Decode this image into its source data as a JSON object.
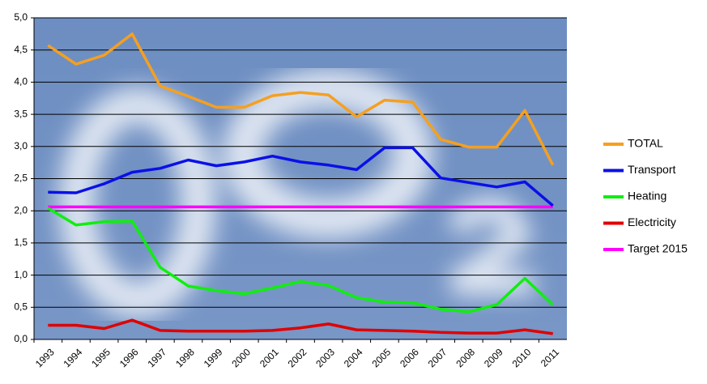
{
  "chart_data": {
    "type": "line",
    "categories": [
      "1993",
      "1994",
      "1995",
      "1996",
      "1997",
      "1998",
      "1999",
      "2000",
      "2001",
      "2002",
      "2003",
      "2004",
      "2005",
      "2006",
      "2007",
      "2008",
      "2009",
      "2010",
      "2011"
    ],
    "series": [
      {
        "name": "TOTAL",
        "color": "#f5a020",
        "values": [
          4.57,
          4.28,
          4.42,
          4.75,
          3.94,
          3.78,
          3.61,
          3.61,
          3.79,
          3.84,
          3.8,
          3.46,
          3.72,
          3.69,
          3.11,
          2.99,
          2.99,
          3.56,
          2.71
        ]
      },
      {
        "name": "Transport",
        "color": "#0a10e6",
        "values": [
          2.29,
          2.28,
          2.42,
          2.6,
          2.66,
          2.79,
          2.7,
          2.76,
          2.85,
          2.76,
          2.71,
          2.64,
          2.98,
          2.98,
          2.51,
          2.44,
          2.37,
          2.45,
          2.08
        ]
      },
      {
        "name": "Heating",
        "color": "#10ee10",
        "values": [
          2.04,
          1.78,
          1.83,
          1.84,
          1.12,
          0.83,
          0.76,
          0.71,
          0.8,
          0.9,
          0.84,
          0.65,
          0.58,
          0.57,
          0.47,
          0.43,
          0.54,
          0.95,
          0.54
        ]
      },
      {
        "name": "Electricity",
        "color": "#e00000",
        "values": [
          0.22,
          0.22,
          0.17,
          0.3,
          0.14,
          0.13,
          0.13,
          0.13,
          0.14,
          0.18,
          0.24,
          0.15,
          0.14,
          0.13,
          0.11,
          0.1,
          0.1,
          0.15,
          0.09
        ]
      },
      {
        "name": "Target 2015",
        "color": "#ff00ff",
        "values": [
          2.06,
          2.06,
          2.06,
          2.06,
          2.06,
          2.06,
          2.06,
          2.06,
          2.06,
          2.06,
          2.06,
          2.06,
          2.06,
          2.06,
          2.06,
          2.06,
          2.06,
          2.06,
          2.06
        ]
      }
    ],
    "ylim": [
      0,
      5
    ],
    "yticks": [
      {
        "value": 0,
        "label": "0,0"
      },
      {
        "value": 0.5,
        "label": "0,5"
      },
      {
        "value": 1,
        "label": "1,0"
      },
      {
        "value": 1.5,
        "label": "1,5"
      },
      {
        "value": 2,
        "label": "2,0"
      },
      {
        "value": 2.5,
        "label": "2,5"
      },
      {
        "value": 3,
        "label": "3,0"
      },
      {
        "value": 3.5,
        "label": "3,5"
      },
      {
        "value": 4,
        "label": "4,0"
      },
      {
        "value": 4.5,
        "label": "4,5"
      },
      {
        "value": 5,
        "label": "5,0"
      }
    ],
    "grid": true
  }
}
